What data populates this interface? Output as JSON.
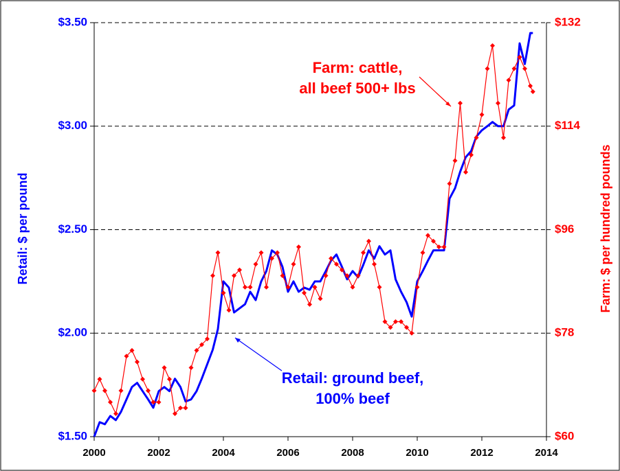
{
  "chart_data": {
    "type": "line",
    "y_axis_label": "Retail: $ per pound",
    "y2_axis_label": "Farm: $ per hundred pounds",
    "annotations": [
      "Farm: cattle,",
      "all beef 500+ lbs",
      "Retail: ground beef,",
      "100% beef"
    ],
    "xlim": [
      2000,
      2014
    ],
    "xticks": [
      2000,
      2002,
      2004,
      2006,
      2008,
      2010,
      2012,
      2014
    ],
    "ylim": [
      1.5,
      3.5
    ],
    "yticks": [
      {
        "value": 1.5,
        "label": "$1.50"
      },
      {
        "value": 2.0,
        "label": "$2.00"
      },
      {
        "value": 2.5,
        "label": "$2.50"
      },
      {
        "value": 3.0,
        "label": "$3.00"
      },
      {
        "value": 3.5,
        "label": "$3.50"
      }
    ],
    "y2lim": [
      60,
      132
    ],
    "y2ticks": [
      {
        "value": 60,
        "label": "$60"
      },
      {
        "value": 78,
        "label": "$78"
      },
      {
        "value": 96,
        "label": "$96"
      },
      {
        "value": 114,
        "label": "$114"
      },
      {
        "value": 132,
        "label": "$132"
      }
    ],
    "grid": true,
    "x": [
      2000,
      2000.17,
      2000.33,
      2000.5,
      2000.67,
      2000.83,
      2001,
      2001.17,
      2001.33,
      2001.5,
      2001.67,
      2001.83,
      2002,
      2002.17,
      2002.33,
      2002.5,
      2002.67,
      2002.83,
      2003,
      2003.17,
      2003.33,
      2003.5,
      2003.67,
      2003.83,
      2004,
      2004.17,
      2004.33,
      2004.5,
      2004.67,
      2004.83,
      2005,
      2005.17,
      2005.33,
      2005.5,
      2005.67,
      2005.83,
      2006,
      2006.17,
      2006.33,
      2006.5,
      2006.67,
      2006.83,
      2007,
      2007.17,
      2007.33,
      2007.5,
      2007.67,
      2007.83,
      2008,
      2008.17,
      2008.33,
      2008.5,
      2008.67,
      2008.83,
      2009,
      2009.17,
      2009.33,
      2009.5,
      2009.67,
      2009.83,
      2010,
      2010.17,
      2010.33,
      2010.5,
      2010.67,
      2010.83,
      2011,
      2011.17,
      2011.33,
      2011.5,
      2011.67,
      2011.83,
      2012,
      2012.17,
      2012.33,
      2012.5,
      2012.67,
      2012.83,
      2013,
      2013.17,
      2013.33,
      2013.5,
      2013.58
    ],
    "series": [
      {
        "name": "Retail: ground beef, 100% beef",
        "color": "#0000ff",
        "axis": "y",
        "values": [
          1.5,
          1.57,
          1.56,
          1.6,
          1.58,
          1.62,
          1.68,
          1.74,
          1.76,
          1.72,
          1.68,
          1.64,
          1.72,
          1.74,
          1.72,
          1.78,
          1.74,
          1.67,
          1.68,
          1.72,
          1.78,
          1.85,
          1.92,
          2.02,
          2.25,
          2.22,
          2.1,
          2.12,
          2.14,
          2.2,
          2.16,
          2.25,
          2.3,
          2.4,
          2.38,
          2.32,
          2.2,
          2.25,
          2.2,
          2.22,
          2.21,
          2.25,
          2.25,
          2.3,
          2.35,
          2.38,
          2.32,
          2.26,
          2.3,
          2.27,
          2.33,
          2.4,
          2.36,
          2.42,
          2.38,
          2.4,
          2.26,
          2.2,
          2.15,
          2.08,
          2.25,
          2.3,
          2.35,
          2.4,
          2.4,
          2.4,
          2.65,
          2.7,
          2.78,
          2.85,
          2.88,
          2.95,
          2.98,
          3.0,
          3.02,
          3.0,
          3.0,
          3.08,
          3.1,
          3.4,
          3.3,
          3.45,
          3.45
        ]
      },
      {
        "name": "Farm: cattle, all beef 500+ lbs",
        "color": "#ff0000",
        "axis": "y2",
        "values": [
          68,
          70,
          68,
          66,
          64,
          68,
          74,
          75,
          73,
          70,
          68,
          66,
          66,
          72,
          70,
          64,
          65,
          65,
          72,
          75,
          76,
          77,
          88,
          92,
          85,
          82,
          88,
          89,
          86,
          86,
          90,
          92,
          86,
          91,
          92,
          88,
          86,
          90,
          93,
          85,
          83,
          86,
          84,
          88,
          91,
          90,
          89,
          88,
          86,
          88,
          92,
          94,
          90,
          86,
          80,
          79,
          80,
          80,
          79,
          78,
          86,
          92,
          95,
          94,
          93,
          93,
          104,
          108,
          118,
          106,
          109,
          112,
          116,
          124,
          128,
          118,
          112,
          122,
          124,
          126,
          124,
          121,
          120
        ]
      }
    ]
  }
}
